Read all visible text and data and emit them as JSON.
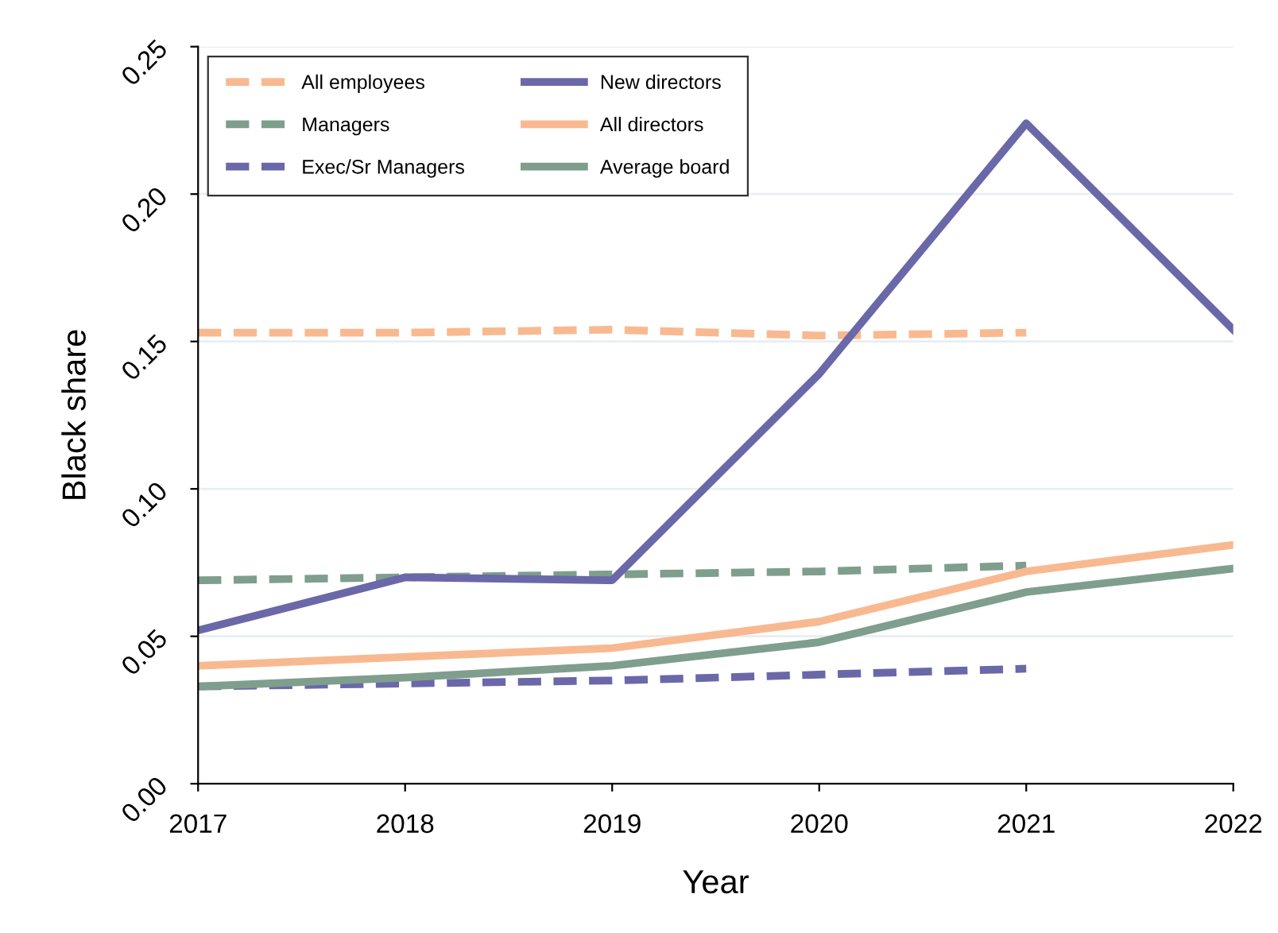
{
  "chart_data": {
    "type": "line",
    "xlabel": "Year",
    "ylabel": "Black share",
    "x": [
      2017,
      2018,
      2019,
      2020,
      2021,
      2022
    ],
    "xlim": [
      2017,
      2022
    ],
    "xticks": [
      2017,
      2018,
      2019,
      2020,
      2021,
      2022
    ],
    "ylim": [
      0,
      0.25
    ],
    "yticks": [
      {
        "value": 0,
        "label": "0.00"
      },
      {
        "value": 0.05,
        "label": "0.05"
      },
      {
        "value": 0.1,
        "label": "0.10"
      },
      {
        "value": 0.15,
        "label": "0.15"
      },
      {
        "value": 0.2,
        "label": "0.20"
      },
      {
        "value": 0.25,
        "label": "0.25"
      }
    ],
    "grid": "y",
    "legend": "top left",
    "series": [
      {
        "name": "All employees",
        "color": "#f9b990",
        "line_style": "dashed",
        "values": [
          0.153,
          0.153,
          0.154,
          0.152,
          0.153,
          null
        ]
      },
      {
        "name": "Managers",
        "color": "#7f9e8d",
        "line_style": "dashed",
        "values": [
          0.069,
          0.07,
          0.071,
          0.072,
          0.074,
          null
        ]
      },
      {
        "name": "Exec/Sr Managers",
        "color": "#6a68a8",
        "line_style": "dashed",
        "values": [
          0.033,
          0.034,
          0.035,
          0.037,
          0.039,
          null
        ]
      },
      {
        "name": "New directors",
        "color": "#6a68a8",
        "line_style": "solid",
        "values": [
          0.052,
          0.07,
          0.069,
          0.139,
          0.224,
          0.154
        ]
      },
      {
        "name": "All directors",
        "color": "#f9b990",
        "line_style": "solid",
        "values": [
          0.04,
          0.043,
          0.046,
          0.055,
          0.072,
          0.081
        ]
      },
      {
        "name": "Average board",
        "color": "#7f9e8d",
        "line_style": "solid",
        "values": [
          0.033,
          0.036,
          0.04,
          0.048,
          0.065,
          0.073
        ]
      }
    ]
  }
}
